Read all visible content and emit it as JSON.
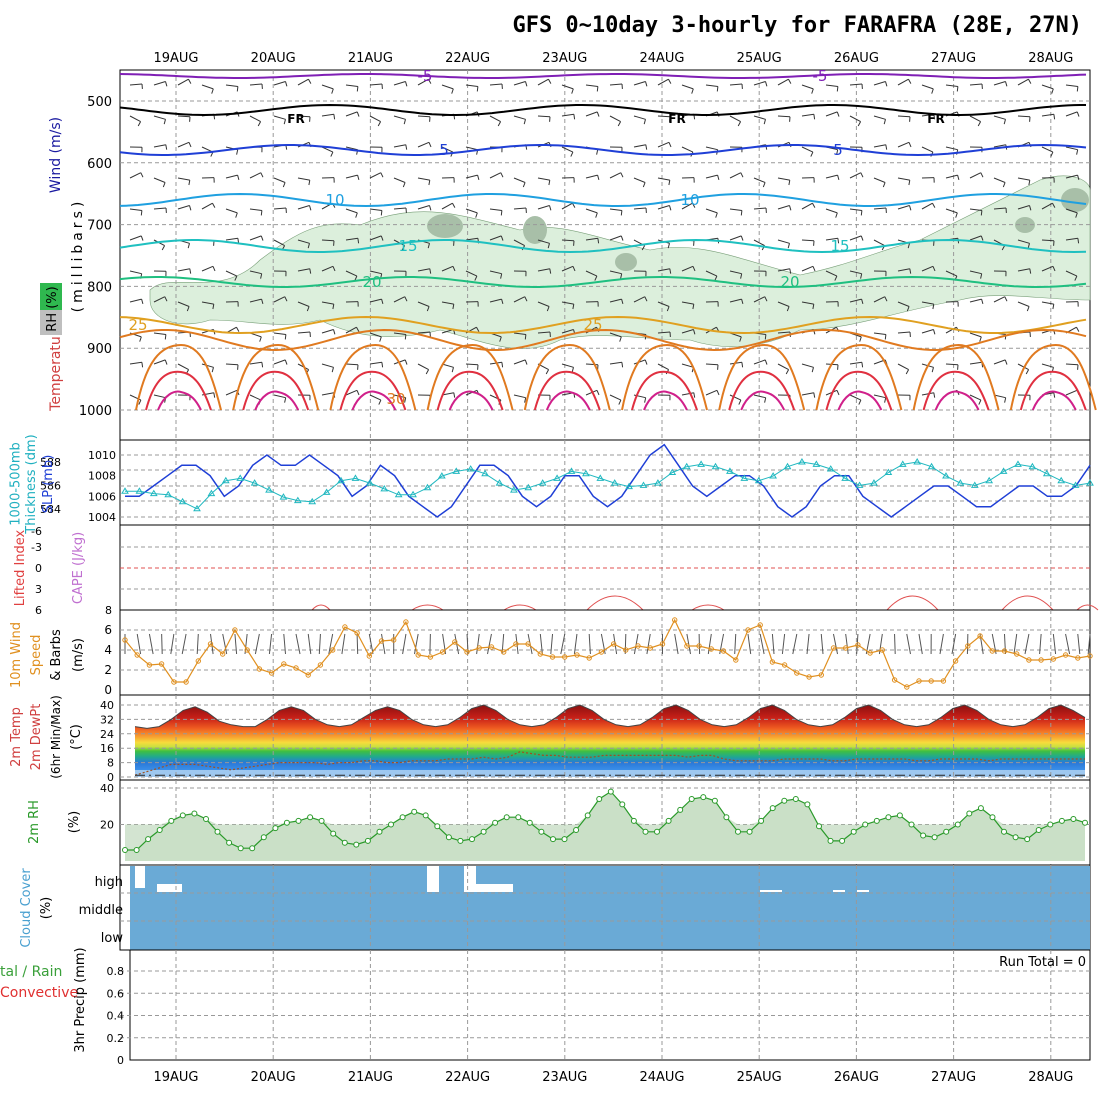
{
  "title": "GFS 0~10day 3-hourly for FARAFRA (28E, 27N)",
  "dates": [
    "19AUG",
    "20AUG",
    "21AUG",
    "22AUG",
    "23AUG",
    "24AUG",
    "25AUG",
    "26AUG",
    "27AUG",
    "28AUG"
  ],
  "colors": {
    "purple": "#7f1fb5",
    "freeze": "#000000",
    "blue5": "#1f3fd6",
    "cyan10": "#1fa0e0",
    "teal15": "#1fc0c0",
    "green20": "#1fbf80",
    "orange25": "#e0a020",
    "orange30": "#e07a20",
    "red35": "#e03040",
    "magenta40": "#d0208a",
    "rhFill": "#dcefdc",
    "rhDark": "#a8bfa8",
    "slp": "#1f3fd6",
    "thick": "#20b8c0",
    "li": "#e05050",
    "wind": "#e09020",
    "cloud": "#6aaad6",
    "rh2m": "#2a9a2a",
    "rh2mFill": "#e8f4e6"
  },
  "panels": {
    "upper": {
      "ylabel_rh": "RH (%)",
      "ylabel_temp": "Temperature (°C)",
      "ylabel_wind": "Wind (m/s)",
      "ylabel_mb": "(millibars)",
      "levels": [
        500,
        600,
        700,
        800,
        900,
        1000
      ],
      "isotherm_labels": [
        "-5",
        "FR",
        "5",
        "10",
        "15",
        "20",
        "25",
        "30"
      ]
    },
    "slp": {
      "ylabel_thick": "1000-500mb\nThickness (dm)",
      "ylabel_slp": "SLP (mb)",
      "thick_ticks": [
        584,
        586,
        588
      ],
      "slp_ticks": [
        1004,
        1006,
        1008,
        1010
      ]
    },
    "li": {
      "ylabel_li": "Lifted Index",
      "ylabel_cape": "CAPE (J/kg)",
      "li_ticks": [
        "-6",
        "-3",
        "0",
        "3",
        "6"
      ],
      "cape_tick": "8"
    },
    "wind": {
      "ylabel_1": "10m Wind",
      "ylabel_2": "Speed",
      "ylabel_3": "& Barbs",
      "ylabel_units": "(m/s)",
      "ticks": [
        "0",
        "2",
        "4",
        "6"
      ]
    },
    "temp": {
      "ylabel_1": "2m Temp",
      "ylabel_2": "2m DewPt",
      "ylabel_3": "(6hr Min/Max)",
      "ylabel_units": "(°C)",
      "ticks": [
        "0",
        "8",
        "16",
        "24",
        "32",
        "40"
      ]
    },
    "rh": {
      "ylabel": "2m RH",
      "ylabel_units": "(%)",
      "ticks": [
        "20",
        "40"
      ]
    },
    "cloud": {
      "ylabel": "Cloud Cover",
      "ylabel_units": "(%)",
      "levels": [
        "high",
        "middle",
        "low"
      ]
    },
    "precip": {
      "ylabel_left": "tal / Rain",
      "ylabel_left2": "Convective",
      "ylabel": "3hr Precip (mm)",
      "ticks": [
        "0",
        "0.2",
        "0.4",
        "0.6",
        "0.8"
      ],
      "run_total": "Run Total = 0"
    }
  },
  "chart_data": [
    {
      "type": "line",
      "title": "2m Temp",
      "ylabel": "(°C)",
      "ylim": [
        0,
        40
      ],
      "x_days": [
        0,
        0.125,
        0.25,
        0.375,
        0.5,
        0.625,
        0.75,
        0.875,
        1,
        1.125,
        1.25,
        1.375,
        1.5,
        1.625,
        1.75,
        1.875,
        2,
        2.125,
        2.25,
        2.375,
        2.5,
        2.625,
        2.75,
        2.875,
        3,
        3.125,
        3.25,
        3.375,
        3.5,
        3.625,
        3.75,
        3.875,
        4,
        4.125,
        4.25,
        4.375,
        4.5,
        4.625,
        4.75,
        4.875,
        5,
        5.125,
        5.25,
        5.375,
        5.5,
        5.625,
        5.75,
        5.875,
        6,
        6.125,
        6.25,
        6.375,
        6.5,
        6.625,
        6.75,
        6.875,
        7,
        7.125,
        7.25,
        7.375,
        7.5,
        7.625,
        7.75,
        7.875,
        8,
        8.125,
        8.25,
        8.375,
        8.5,
        8.625,
        8.75,
        8.875,
        9,
        9.125,
        9.25,
        9.375,
        9.5,
        9.625,
        9.75,
        9.875
      ],
      "series": [
        {
          "name": "2m Temp",
          "values": [
            28,
            27,
            28,
            32,
            37,
            39,
            36,
            31,
            29,
            28,
            28,
            32,
            37,
            39,
            37,
            32,
            29,
            28,
            29,
            33,
            37,
            39,
            37,
            32,
            29,
            28,
            29,
            33,
            38,
            40,
            37,
            32,
            29,
            28,
            29,
            33,
            38,
            40,
            37,
            32,
            29,
            28,
            29,
            33,
            38,
            40,
            37,
            32,
            29,
            28,
            29,
            33,
            38,
            40,
            37,
            32,
            29,
            28,
            29,
            33,
            38,
            40,
            37,
            32,
            29,
            28,
            29,
            33,
            38,
            40,
            37,
            32,
            29,
            28,
            29,
            33,
            38,
            40,
            37,
            33
          ]
        },
        {
          "name": "2m DewPt",
          "values": [
            1,
            3,
            5,
            7,
            7,
            7,
            6,
            5,
            4,
            5,
            6,
            7,
            8,
            8,
            8,
            8,
            7,
            8,
            8,
            9,
            9,
            8,
            8,
            9,
            9,
            9,
            10,
            10,
            10,
            11,
            10,
            11,
            14,
            13,
            12,
            12,
            11,
            11,
            11,
            12,
            12,
            12,
            12,
            12,
            12,
            12,
            11,
            12,
            12,
            10,
            9,
            9,
            9,
            9,
            10,
            10,
            10,
            10,
            9,
            9,
            10,
            10,
            10,
            10,
            10,
            9,
            9,
            10,
            10,
            10,
            10,
            9,
            10,
            10,
            10,
            10,
            10,
            10,
            10,
            10
          ]
        }
      ]
    },
    {
      "type": "line",
      "title": "2m RH",
      "ylabel": "(%)",
      "ylim": [
        0,
        43
      ],
      "series": [
        {
          "name": "2m RH",
          "values": [
            6,
            6,
            12,
            17,
            22,
            25,
            26,
            23,
            16,
            10,
            7,
            7,
            13,
            18,
            21,
            22,
            24,
            22,
            15,
            10,
            9,
            11,
            16,
            20,
            24,
            27,
            25,
            19,
            13,
            11,
            12,
            16,
            21,
            24,
            24,
            21,
            16,
            12,
            12,
            17,
            25,
            34,
            38,
            31,
            22,
            16,
            16,
            22,
            28,
            34,
            35,
            33,
            24,
            16,
            16,
            22,
            29,
            33,
            34,
            31,
            19,
            11,
            11,
            16,
            20,
            22,
            24,
            25,
            20,
            14,
            13,
            16,
            20,
            26,
            29,
            24,
            16,
            13,
            12,
            17,
            20,
            22,
            23,
            21
          ]
        }
      ]
    },
    {
      "type": "line",
      "title": "10m Wind Speed",
      "ylabel": "(m/s)",
      "ylim": [
        0,
        7
      ],
      "series": [
        {
          "name": "10m Wind Speed",
          "values": [
            5.0,
            3.5,
            2.5,
            2.6,
            0.8,
            0.8,
            2.9,
            4.6,
            3.6,
            6.0,
            4.0,
            2.1,
            1.7,
            2.6,
            2.2,
            1.5,
            2.5,
            4.0,
            6.3,
            5.7,
            3.4,
            4.9,
            5.0,
            6.8,
            3.5,
            3.3,
            3.8,
            4.8,
            3.8,
            4.2,
            4.3,
            3.8,
            4.6,
            4.6,
            3.6,
            3.3,
            3.3,
            3.5,
            3.2,
            3.8,
            4.6,
            4.0,
            4.4,
            4.2,
            4.6,
            7.0,
            4.4,
            4.4,
            4.1,
            3.9,
            3.0,
            6.0,
            6.5,
            2.8,
            2.5,
            1.7,
            1.3,
            1.5,
            4.2,
            4.2,
            4.5,
            3.7,
            4.0,
            1.0,
            0.3,
            0.9,
            0.9,
            0.9,
            2.9,
            4.4,
            5.4,
            3.9,
            3.9,
            3.6,
            3.0,
            3.0,
            3.1,
            3.5,
            3.2,
            3.4
          ]
        }
      ]
    },
    {
      "type": "line",
      "title": "SLP / Thickness",
      "ylabel": "SLP (mb)",
      "ylim": [
        1003,
        1011
      ],
      "series": [
        {
          "name": "SLP",
          "values": [
            1006,
            1006,
            1007,
            1008,
            1009,
            1009,
            1008,
            1006,
            1007,
            1009,
            1010,
            1009,
            1009,
            1010,
            1009,
            1008,
            1006,
            1007,
            1009,
            1008,
            1006,
            1005,
            1004,
            1005,
            1007,
            1009,
            1009,
            1008,
            1006,
            1005,
            1006,
            1008,
            1008,
            1006,
            1005,
            1006,
            1008,
            1010,
            1011,
            1009,
            1007,
            1006,
            1007,
            1008,
            1008,
            1007,
            1005,
            1004,
            1005,
            1007,
            1008,
            1008,
            1006,
            1005,
            1004,
            1005,
            1006,
            1007,
            1007,
            1006,
            1005,
            1005,
            1006,
            1007,
            1007,
            1006,
            1006,
            1007,
            1009
          ]
        },
        {
          "name": "1000-500mb Thickness",
          "values": [
            585.5,
            585.5,
            585.3,
            585.2,
            584.6,
            584.0,
            585.3,
            586.4,
            586.6,
            586.2,
            585.6,
            585.0,
            584.7,
            584.6,
            585.4,
            586.4,
            586.6,
            586.2,
            585.7,
            585.2,
            585.2,
            585.8,
            586.8,
            587.2,
            587.4,
            587.0,
            586.2,
            585.6,
            585.8,
            586.2,
            586.6,
            587.2,
            587.0,
            586.6,
            586.2,
            585.9,
            586.0,
            586.2,
            587.1,
            587.6,
            587.8,
            587.6,
            587.2,
            586.6,
            586.4,
            586.8,
            587.6,
            588.0,
            587.8,
            587.4,
            586.6,
            586.0,
            586.2,
            587.1,
            587.8,
            588.0,
            587.6,
            586.8,
            586.2,
            586.0,
            586.4,
            587.2,
            587.8,
            587.6,
            587.0,
            586.4,
            586.0,
            586.2
          ]
        }
      ]
    },
    {
      "type": "bar",
      "title": "Cloud Cover",
      "categories": [
        "high",
        "middle",
        "low"
      ],
      "values": [
        0,
        0,
        0
      ]
    },
    {
      "type": "bar",
      "title": "3hr Precip",
      "ylabel": "(mm)",
      "ylim": [
        0,
        0.9
      ],
      "values": [
        0
      ]
    }
  ]
}
